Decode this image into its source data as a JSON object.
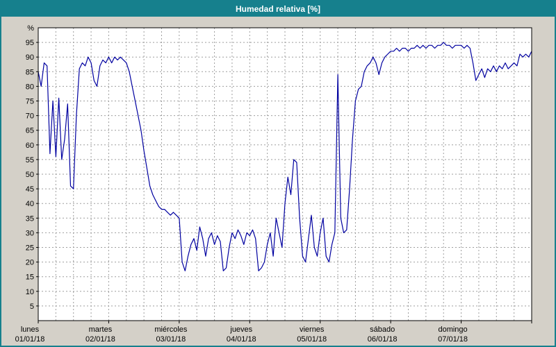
{
  "window": {
    "title": "Humedad relativa [%]"
  },
  "colors": {
    "header_bg": "#16808d",
    "header_text": "#ffffff",
    "page_bg": "#d4d0c8",
    "plot_bg": "#ffffff",
    "grid": "#9e9e9e",
    "frame": "#000000",
    "line": "#0000a0",
    "text": "#000000"
  },
  "chart_data": {
    "type": "line",
    "title": "Humedad relativa [%]",
    "ylabel": "%",
    "ylim": [
      0,
      100
    ],
    "yticks": [
      5,
      10,
      15,
      20,
      25,
      30,
      35,
      40,
      45,
      50,
      55,
      60,
      65,
      70,
      75,
      80,
      85,
      90,
      95
    ],
    "grid": "dashed",
    "legend_position": "none",
    "x_unit": "hours",
    "x_range_hours": [
      0,
      168
    ],
    "vertical_grid_hours": 6,
    "days": [
      {
        "name": "lunes",
        "date": "01/01/18"
      },
      {
        "name": "martes",
        "date": "02/01/18"
      },
      {
        "name": "miércoles",
        "date": "03/01/18"
      },
      {
        "name": "jueves",
        "date": "04/01/18"
      },
      {
        "name": "viernes",
        "date": "05/01/18"
      },
      {
        "name": "sábado",
        "date": "06/01/18"
      },
      {
        "name": "domingo",
        "date": "07/01/18"
      }
    ],
    "series": [
      {
        "name": "Humedad relativa",
        "color": "#0000a0",
        "values": [
          85,
          80,
          88,
          87,
          57,
          75,
          56,
          76,
          55,
          62,
          74,
          46,
          45,
          70,
          86,
          88,
          87,
          90,
          88,
          82,
          80,
          87,
          89,
          88,
          90,
          88,
          90,
          89,
          90,
          89,
          88,
          85,
          80,
          75,
          70,
          65,
          58,
          52,
          46,
          43,
          41,
          39,
          38,
          38,
          37,
          36,
          37,
          36,
          35,
          20,
          17,
          22,
          26,
          28,
          24,
          32,
          28,
          22,
          28,
          30,
          26,
          29,
          27,
          17,
          18,
          25,
          30,
          28,
          31,
          29,
          26,
          30,
          29,
          31,
          28,
          17,
          18,
          20,
          26,
          30,
          22,
          35,
          30,
          25,
          40,
          49,
          43,
          55,
          54,
          35,
          22,
          20,
          28,
          36,
          25,
          22,
          30,
          35,
          22,
          20,
          26,
          30,
          84,
          35,
          30,
          31,
          45,
          62,
          75,
          79,
          80,
          85,
          87,
          88,
          90,
          88,
          84,
          88,
          90,
          91,
          92,
          92,
          93,
          92,
          93,
          93,
          92,
          93,
          93,
          94,
          93,
          94,
          93,
          94,
          94,
          93,
          94,
          94,
          95,
          94,
          94,
          93,
          94,
          94,
          94,
          93,
          94,
          93,
          88,
          82,
          84,
          86,
          83,
          86,
          85,
          87,
          85,
          87,
          86,
          88,
          86,
          87,
          88,
          87,
          91,
          90,
          91,
          90,
          92
        ]
      }
    ]
  }
}
